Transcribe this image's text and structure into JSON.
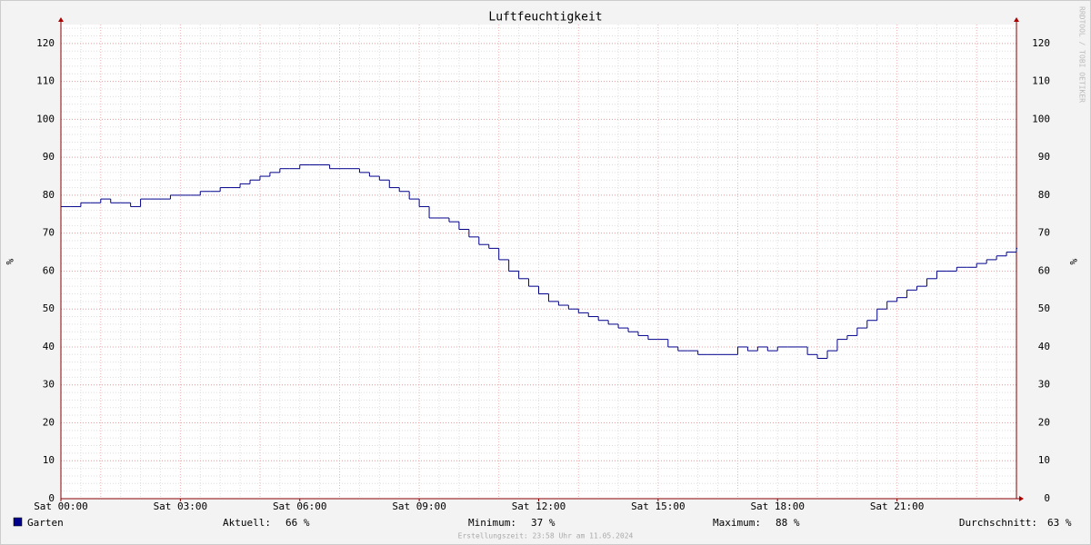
{
  "chart_data": {
    "type": "line",
    "title": "Luftfeuchtigkeit",
    "y_label": "%",
    "watermark": "RRDTOOL / TOBI OETIKER",
    "footer": "Erstellungszeit: 23:58 Uhr am 11.05.2024",
    "xlim": [
      0,
      24
    ],
    "xticks": [
      {
        "value": 0,
        "label": "Sat 00:00"
      },
      {
        "value": 3,
        "label": "Sat 03:00"
      },
      {
        "value": 6,
        "label": "Sat 06:00"
      },
      {
        "value": 9,
        "label": "Sat 09:00"
      },
      {
        "value": 12,
        "label": "Sat 12:00"
      },
      {
        "value": 15,
        "label": "Sat 15:00"
      },
      {
        "value": 18,
        "label": "Sat 18:00"
      },
      {
        "value": 21,
        "label": "Sat 21:00"
      }
    ],
    "ylim": [
      0,
      125
    ],
    "yticks": [
      0,
      10,
      20,
      30,
      40,
      50,
      60,
      70,
      80,
      90,
      100,
      110,
      120
    ],
    "grid": true,
    "x": [
      0,
      0.25,
      0.5,
      0.75,
      1,
      1.25,
      1.5,
      1.75,
      2,
      2.25,
      2.5,
      2.75,
      3,
      3.25,
      3.5,
      3.75,
      4,
      4.25,
      4.5,
      4.75,
      5,
      5.25,
      5.5,
      5.75,
      6,
      6.25,
      6.5,
      6.75,
      7,
      7.25,
      7.5,
      7.75,
      8,
      8.25,
      8.5,
      8.75,
      9,
      9.25,
      9.5,
      9.75,
      10,
      10.25,
      10.5,
      10.75,
      11,
      11.25,
      11.5,
      11.75,
      12,
      12.25,
      12.5,
      12.75,
      13,
      13.25,
      13.5,
      13.75,
      14,
      14.25,
      14.5,
      14.75,
      15,
      15.25,
      15.5,
      15.75,
      16,
      16.25,
      16.5,
      16.75,
      17,
      17.25,
      17.5,
      17.75,
      18,
      18.25,
      18.5,
      18.75,
      19,
      19.25,
      19.5,
      19.75,
      20,
      20.25,
      20.5,
      20.75,
      21,
      21.25,
      21.5,
      21.75,
      22,
      22.25,
      22.5,
      22.75,
      23,
      23.25,
      23.5,
      23.75,
      24
    ],
    "series": [
      {
        "name": "Garten",
        "color": "#00008b",
        "values": [
          77,
          77,
          78,
          78,
          79,
          78,
          78,
          77,
          79,
          79,
          79,
          80,
          80,
          80,
          81,
          81,
          82,
          82,
          83,
          84,
          85,
          86,
          87,
          87,
          88,
          88,
          88,
          87,
          87,
          87,
          86,
          85,
          84,
          82,
          81,
          79,
          77,
          74,
          74,
          73,
          71,
          69,
          67,
          66,
          63,
          60,
          58,
          56,
          54,
          52,
          51,
          50,
          49,
          48,
          47,
          46,
          45,
          44,
          43,
          42,
          42,
          40,
          39,
          39,
          38,
          38,
          38,
          38,
          40,
          39,
          40,
          39,
          40,
          40,
          40,
          38,
          37,
          39,
          42,
          43,
          45,
          47,
          50,
          52,
          53,
          55,
          56,
          58,
          60,
          60,
          61,
          61,
          62,
          63,
          64,
          65,
          66
        ]
      }
    ],
    "legend_stats": [
      {
        "label": "Aktuell:",
        "value": 66,
        "value_label": "66 %"
      },
      {
        "label": "Minimum:",
        "value": 37,
        "value_label": "37 %"
      },
      {
        "label": "Maximum:",
        "value": 88,
        "value_label": "88 %"
      },
      {
        "label": "Durchschnitt:",
        "value": 63,
        "value_label": "63 %"
      }
    ]
  }
}
